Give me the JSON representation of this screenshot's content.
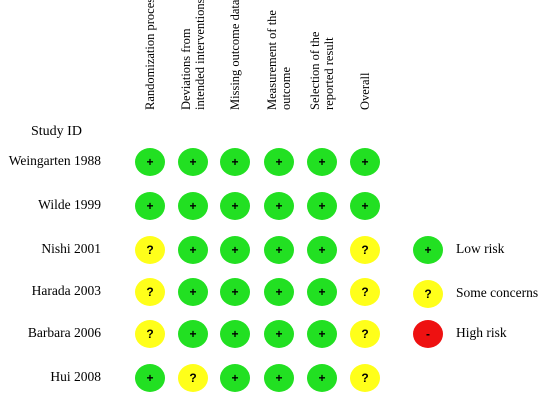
{
  "study_id_heading": "Study ID",
  "columns": [
    {
      "lines": [
        "Randomization process"
      ]
    },
    {
      "lines": [
        "Deviations from",
        "intended interventions"
      ]
    },
    {
      "lines": [
        "Missing outcome data"
      ]
    },
    {
      "lines": [
        "Measurement of the",
        "outcome"
      ]
    },
    {
      "lines": [
        "Selection of the",
        "reported result"
      ]
    },
    {
      "lines": [
        "Overall"
      ]
    }
  ],
  "studies": [
    {
      "name": "Weingarten 1988",
      "judgements": [
        "low",
        "low",
        "low",
        "low",
        "low",
        "low"
      ]
    },
    {
      "name": "Wilde 1999",
      "judgements": [
        "low",
        "low",
        "low",
        "low",
        "low",
        "low"
      ]
    },
    {
      "name": "Nishi 2001",
      "judgements": [
        "some",
        "low",
        "low",
        "low",
        "low",
        "some"
      ]
    },
    {
      "name": "Harada 2003",
      "judgements": [
        "some",
        "low",
        "low",
        "low",
        "low",
        "some"
      ]
    },
    {
      "name": "Barbara 2006",
      "judgements": [
        "some",
        "low",
        "low",
        "low",
        "low",
        "some"
      ]
    },
    {
      "name": "Hui 2008",
      "judgements": [
        "low",
        "some",
        "low",
        "low",
        "low",
        "some"
      ]
    }
  ],
  "legend": [
    {
      "key": "low",
      "label": "Low risk"
    },
    {
      "key": "some",
      "label": "Some concerns"
    },
    {
      "key": "high",
      "label": "High risk"
    }
  ],
  "symbols": {
    "low": {
      "glyph": "+",
      "color": "#22e022"
    },
    "some": {
      "glyph": "?",
      "color": "#ffff1a"
    },
    "high": {
      "glyph": "-",
      "color": "#ee1111"
    }
  }
}
